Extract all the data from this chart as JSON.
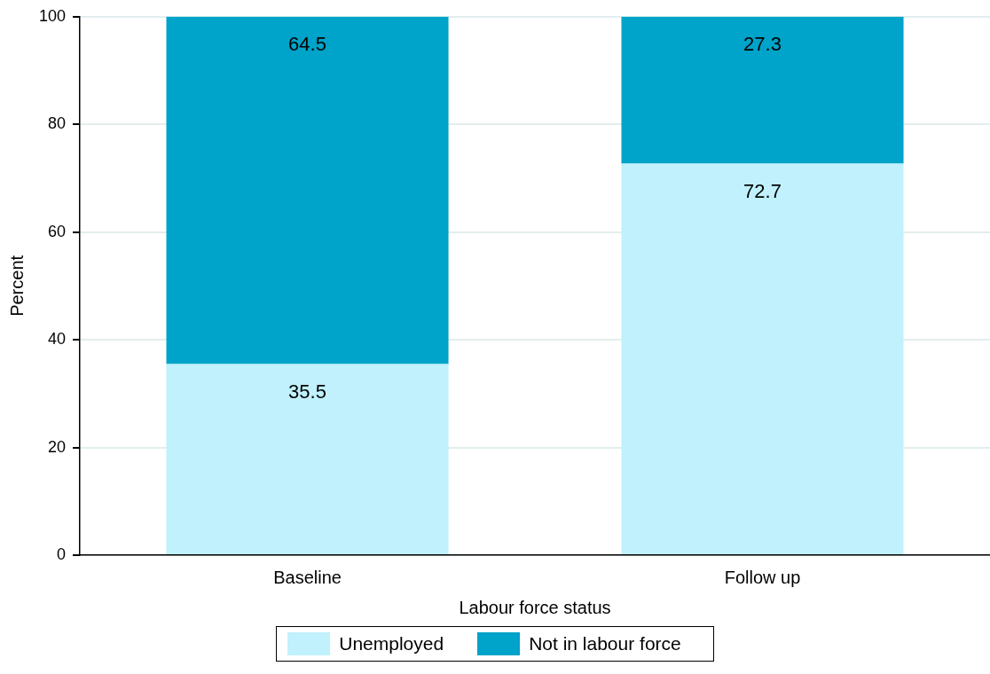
{
  "chart_data": {
    "type": "bar",
    "stacked": true,
    "xlabel": "Labour force status",
    "ylabel": "Percent",
    "categories": [
      "Baseline",
      "Follow up"
    ],
    "series": [
      {
        "name": "Unemployed",
        "color": "#c0f1fc",
        "values": [
          35.5,
          72.7
        ]
      },
      {
        "name": "Not in labour force",
        "color": "#00a3c9",
        "values": [
          64.5,
          27.3
        ]
      }
    ],
    "ylim": [
      0,
      100
    ],
    "yticks": [
      0,
      20,
      40,
      60,
      80,
      100
    ],
    "grid": "y",
    "legend": "bottom",
    "data_labels": true
  }
}
